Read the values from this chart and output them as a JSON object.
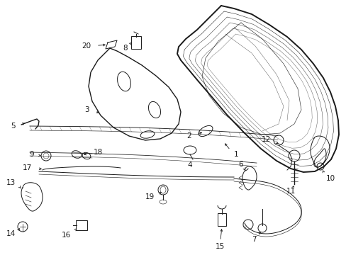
{
  "background_color": "#ffffff",
  "line_color": "#1a1a1a",
  "fig_width": 4.89,
  "fig_height": 3.6,
  "dpi": 100,
  "label_fontsize": 7.5
}
